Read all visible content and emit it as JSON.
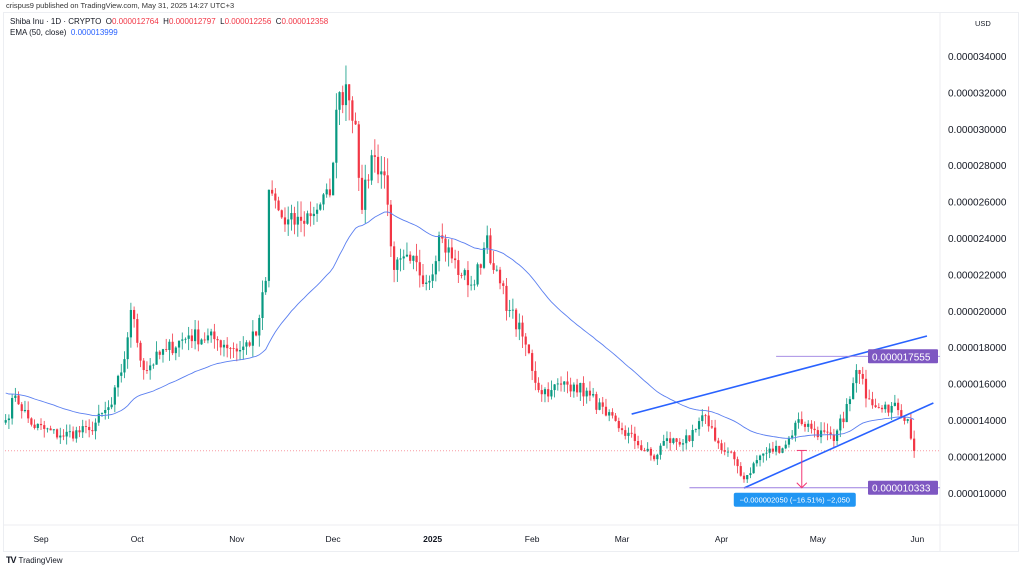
{
  "header": {
    "publisher_line": "crispus9 published on TradingView.com, May 31, 2025 14:27 UTC+3"
  },
  "legend": {
    "symbol": "Shiba Inu · 1D · CRYPTO",
    "o_label": "O",
    "o": "0.000012764",
    "h_label": "H",
    "h": "0.000012797",
    "l_label": "L",
    "l": "0.000012256",
    "c_label": "C",
    "c": "0.000012358",
    "ema_label": "EMA (50, close)",
    "ema": "0.000013999"
  },
  "currency": "USD",
  "footer": {
    "brand": "TradingView"
  },
  "colors": {
    "up": "#089981",
    "down": "#f23645",
    "ema": "#5b7ff0",
    "trend": "#2962ff",
    "level": "#9c7fe0",
    "level_label": "#7e57c2",
    "measure": "#f23675",
    "measure_label": "#2196f3"
  },
  "chart_data": {
    "type": "candlestick",
    "title": "Shiba Inu · 1D · CRYPTO",
    "unit_note": "prices in USD; keypoint values in millionths (1e-6 USD)",
    "x_unit": "day index",
    "ylim": [
      9.5e-06,
      3.55e-05
    ],
    "y_ticks": [
      "0.000010000",
      "0.000012000",
      "0.000014000",
      "0.000016000",
      "0.000018000",
      "0.000020000",
      "0.000022000",
      "0.000024000",
      "0.000026000",
      "0.000028000",
      "0.000030000",
      "0.000032000",
      "0.000034000"
    ],
    "y_tick_values": [
      10,
      12,
      14,
      16,
      18,
      20,
      22,
      24,
      26,
      28,
      30,
      32,
      34
    ],
    "x_ticks": [
      {
        "label": "Sep",
        "day": 11
      },
      {
        "label": "Oct",
        "day": 41
      },
      {
        "label": "Nov",
        "day": 72
      },
      {
        "label": "Dec",
        "day": 102
      },
      {
        "label": "2025",
        "day": 133,
        "bold": true
      },
      {
        "label": "Feb",
        "day": 164
      },
      {
        "label": "Mar",
        "day": 192
      },
      {
        "label": "Apr",
        "day": 223
      },
      {
        "label": "May",
        "day": 253
      },
      {
        "label": "Jun",
        "day": 284
      }
    ],
    "close_keypoints": [
      [
        0,
        14.05
      ],
      [
        3,
        15.4
      ],
      [
        8,
        13.8
      ],
      [
        17,
        13.2
      ],
      [
        26,
        13.5
      ],
      [
        33,
        14.9
      ],
      [
        37,
        17.4
      ],
      [
        39,
        20.1
      ],
      [
        43,
        16.8
      ],
      [
        50,
        17.9
      ],
      [
        57,
        18.7
      ],
      [
        65,
        18.5
      ],
      [
        73,
        17.9
      ],
      [
        78,
        18.7
      ],
      [
        81,
        21.7
      ],
      [
        82,
        26.7
      ],
      [
        87,
        24.8
      ],
      [
        92,
        25.0
      ],
      [
        98,
        25.9
      ],
      [
        101,
        26.4
      ],
      [
        103,
        31.1
      ],
      [
        106,
        32.5
      ],
      [
        109,
        30.3
      ],
      [
        111,
        25.6
      ],
      [
        114,
        28.6
      ],
      [
        118,
        27.5
      ],
      [
        121,
        22.3
      ],
      [
        126,
        22.8
      ],
      [
        132,
        21.7
      ],
      [
        135,
        24.2
      ],
      [
        142,
        22.0
      ],
      [
        146,
        21.5
      ],
      [
        150,
        24.2
      ],
      [
        152,
        22.3
      ],
      [
        157,
        20.1
      ],
      [
        162,
        18.2
      ],
      [
        166,
        15.7
      ],
      [
        170,
        15.7
      ],
      [
        173,
        16.0
      ],
      [
        177,
        16.0
      ],
      [
        182,
        15.4
      ],
      [
        187,
        14.3
      ],
      [
        192,
        13.5
      ],
      [
        196,
        12.9
      ],
      [
        202,
        11.9
      ],
      [
        205,
        12.9
      ],
      [
        213,
        12.9
      ],
      [
        218,
        14.3
      ],
      [
        223,
        12.4
      ],
      [
        227,
        11.9
      ],
      [
        230,
        10.8
      ],
      [
        235,
        12.1
      ],
      [
        243,
        12.7
      ],
      [
        247,
        14.1
      ],
      [
        252,
        13.5
      ],
      [
        258,
        12.9
      ],
      [
        263,
        15.2
      ],
      [
        265,
        16.8
      ],
      [
        269,
        15.2
      ],
      [
        274,
        14.9
      ],
      [
        278,
        14.6
      ],
      [
        281,
        14.1
      ],
      [
        283,
        12.358
      ]
    ],
    "last_price": 12.358,
    "ema_period": 50,
    "ema_seed": 15.6,
    "drawings": {
      "upper_trendline": [
        [
          195,
          14.38
        ],
        [
          287,
          18.67
        ]
      ],
      "lower_trendline": [
        [
          230,
          10.32
        ],
        [
          289,
          14.99
        ]
      ],
      "resistance": {
        "from_day": 240,
        "price": 17.555,
        "label": "0.000017555"
      },
      "support": {
        "from_day": 213,
        "price": 10.333,
        "label": "0.000010333"
      },
      "measure": {
        "day": 248,
        "from": 12.383,
        "to": 10.333,
        "label": "−0.000002050 (−16.51%) −2,050"
      }
    }
  }
}
